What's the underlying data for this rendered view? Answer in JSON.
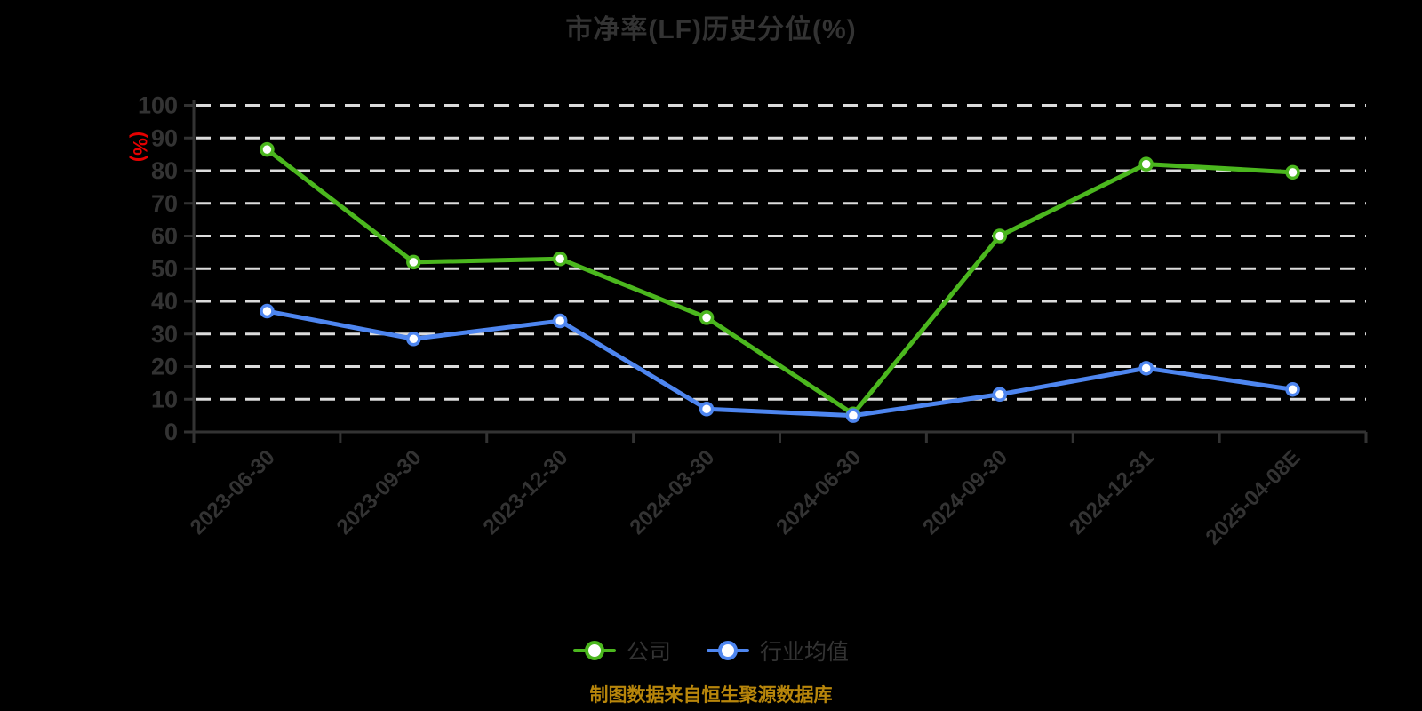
{
  "title": "市净率(LF)历史分位(%)",
  "footer": "制图数据来自恒生聚源数据库",
  "chart_data": {
    "type": "line",
    "title": "市净率(LF)历史分位(%)",
    "y_unit": "(%)",
    "xlabel": "",
    "ylabel": "(%)",
    "categories": [
      "2023-06-30",
      "2023-09-30",
      "2023-12-30",
      "2024-03-30",
      "2024-06-30",
      "2024-09-30",
      "2024-12-31",
      "2025-04-08E"
    ],
    "series": [
      {
        "name": "公司",
        "color": "#4bb71e",
        "values": [
          86.5,
          52,
          53,
          35,
          5.5,
          60,
          82,
          79.5
        ]
      },
      {
        "name": "行业均值",
        "color": "#4e86f0",
        "values": [
          37,
          28.5,
          34,
          7,
          5,
          11.5,
          19.5,
          13
        ]
      }
    ],
    "ylim": [
      0,
      100
    ],
    "yticks": [
      0,
      10,
      20,
      30,
      40,
      50,
      60,
      70,
      80,
      90,
      100
    ],
    "grid": "horizontal-dashed",
    "legend_position": "bottom",
    "colors": {
      "background": "#000000",
      "title": "#333333",
      "axis": "#333333",
      "tick_label": "#333333",
      "grid": "#dcdcdc",
      "unit_label": "#e60000",
      "footer": "#b8860b",
      "marker_fill": "#ffffff"
    }
  }
}
